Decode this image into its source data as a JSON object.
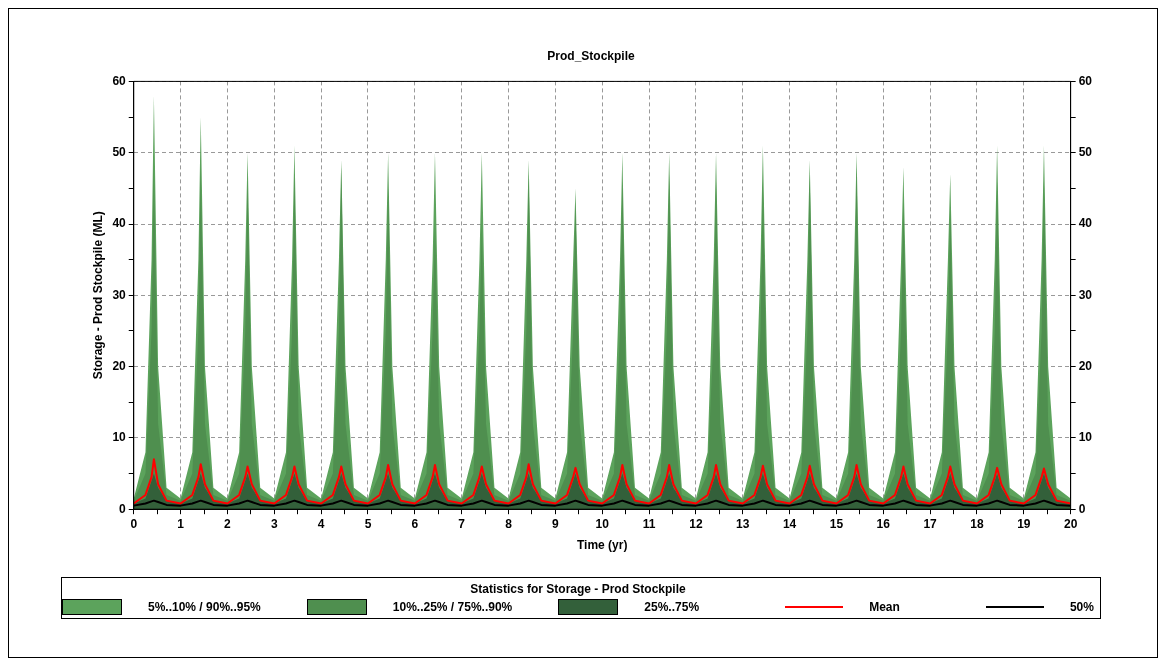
{
  "chart_data": {
    "type": "line",
    "title": "Prod_Stockpile",
    "xlabel": "Time (yr)",
    "ylabel": "Storage - Prod Stockpile (ML)",
    "legend_title": "Statistics for Storage - Prod Stockpile",
    "legend": "bottom",
    "grid": true,
    "marker": "none",
    "xlim": [
      0,
      20
    ],
    "xticks": [
      0,
      {
        "value": 0.5,
        "label": null
      },
      1,
      {
        "value": 1.5,
        "label": null
      },
      2,
      {
        "value": 2.5,
        "label": null
      },
      3,
      {
        "value": 3.5,
        "label": null
      },
      4,
      {
        "value": 4.5,
        "label": null
      },
      5,
      {
        "value": 5.5,
        "label": null
      },
      6,
      {
        "value": 6.5,
        "label": null
      },
      7,
      {
        "value": 7.5,
        "label": null
      },
      8,
      {
        "value": 8.5,
        "label": null
      },
      9,
      {
        "value": 9.5,
        "label": null
      },
      10,
      {
        "value": 10.5,
        "label": null
      },
      11,
      {
        "value": 11.5,
        "label": null
      },
      12,
      {
        "value": 12.5,
        "label": null
      },
      13,
      {
        "value": 13.5,
        "label": null
      },
      14,
      {
        "value": 14.5,
        "label": null
      },
      15,
      {
        "value": 15.5,
        "label": null
      },
      16,
      {
        "value": 16.5,
        "label": null
      },
      17,
      {
        "value": 17.5,
        "label": null
      },
      18,
      {
        "value": 18.5,
        "label": null
      },
      19,
      {
        "value": 19.5,
        "label": null
      },
      20
    ],
    "ylim": [
      0,
      60
    ],
    "yticks": [
      0,
      {
        "value": 5,
        "label": null
      },
      10,
      {
        "value": 15,
        "label": null
      },
      20,
      {
        "value": 25,
        "label": null
      },
      30,
      {
        "value": 35,
        "label": null
      },
      40,
      {
        "value": 45,
        "label": null
      },
      50,
      {
        "value": 55,
        "label": null
      },
      60
    ],
    "y2lim": [
      0,
      60
    ],
    "y2ticks": [
      0,
      {
        "value": 5,
        "label": null
      },
      10,
      {
        "value": 15,
        "label": null
      },
      20,
      {
        "value": 25,
        "label": null
      },
      30,
      {
        "value": 35,
        "label": null
      },
      40,
      {
        "value": 45,
        "label": null
      },
      50,
      {
        "value": 55,
        "label": null
      },
      60
    ],
    "x": [
      0,
      0.25,
      0.38,
      0.43,
      0.52,
      0.7,
      1,
      1.25,
      1.38,
      1.43,
      1.52,
      1.7,
      2,
      2.25,
      2.38,
      2.43,
      2.52,
      2.7,
      3,
      3.25,
      3.38,
      3.43,
      3.52,
      3.7,
      4,
      4.25,
      4.38,
      4.43,
      4.52,
      4.7,
      5,
      5.25,
      5.38,
      5.43,
      5.52,
      5.7,
      6,
      6.25,
      6.38,
      6.43,
      6.52,
      6.7,
      7,
      7.25,
      7.38,
      7.43,
      7.52,
      7.7,
      8,
      8.25,
      8.38,
      8.43,
      8.52,
      8.7,
      9,
      9.25,
      9.38,
      9.43,
      9.52,
      9.7,
      10,
      10.25,
      10.38,
      10.43,
      10.52,
      10.7,
      11,
      11.25,
      11.38,
      11.43,
      11.52,
      11.7,
      12,
      12.25,
      12.38,
      12.43,
      12.52,
      12.7,
      13,
      13.25,
      13.38,
      13.43,
      13.52,
      13.7,
      14,
      14.25,
      14.38,
      14.43,
      14.52,
      14.7,
      15,
      15.25,
      15.38,
      15.43,
      15.52,
      15.7,
      16,
      16.25,
      16.38,
      16.43,
      16.52,
      16.7,
      17,
      17.25,
      17.38,
      17.43,
      17.52,
      17.7,
      18,
      18.25,
      18.38,
      18.43,
      18.52,
      18.7,
      19,
      19.25,
      19.38,
      19.43,
      19.52,
      19.7,
      20
    ],
    "series": [
      {
        "name": "5%..10% / 90%..95%",
        "type": "area",
        "color": "#5ca35c",
        "values": [
          1.5,
          8,
          35,
          58,
          20,
          3,
          1.5,
          8,
          35,
          55,
          20,
          3,
          1.5,
          8,
          35,
          50,
          20,
          3,
          1.5,
          8,
          35,
          51,
          20,
          3,
          1.5,
          8,
          35,
          49,
          20,
          3,
          1.5,
          8,
          35,
          50,
          20,
          3,
          1.5,
          8,
          35,
          50,
          20,
          3,
          1.5,
          8,
          35,
          50,
          20,
          3,
          1.5,
          8,
          35,
          49,
          20,
          3,
          1.5,
          8,
          35,
          45,
          20,
          3,
          1.5,
          8,
          35,
          50,
          20,
          3,
          1.5,
          8,
          35,
          50,
          20,
          3,
          1.5,
          8,
          35,
          50,
          20,
          3,
          1.5,
          8,
          35,
          51,
          20,
          3,
          1.5,
          8,
          35,
          49,
          20,
          3,
          1.5,
          8,
          35,
          50,
          20,
          3,
          1.5,
          8,
          35,
          48,
          20,
          3,
          1.5,
          8,
          35,
          47,
          20,
          3,
          1.5,
          8,
          35,
          51,
          20,
          3,
          1.5,
          8,
          35,
          51,
          20,
          3,
          1.5
        ]
      },
      {
        "name": "10%..25% / 75%..90%",
        "type": "area",
        "color": "#4f8f4f",
        "values": [
          1.2,
          5,
          25,
          48,
          12,
          2,
          1.2,
          5,
          25,
          48,
          12,
          2,
          1.2,
          5,
          25,
          46,
          12,
          2,
          1.2,
          5,
          25,
          47,
          12,
          2,
          1.2,
          5,
          25,
          48,
          12,
          2,
          1.2,
          5,
          25,
          45,
          12,
          2,
          1.2,
          5,
          25,
          40,
          12,
          2,
          1.2,
          5,
          25,
          40,
          12,
          2,
          1.2,
          5,
          25,
          47,
          12,
          2,
          1.2,
          5,
          25,
          43,
          12,
          2,
          1.2,
          5,
          25,
          46,
          12,
          2,
          1.2,
          5,
          25,
          47,
          12,
          2,
          1.2,
          5,
          25,
          46,
          12,
          2,
          1.2,
          5,
          25,
          46,
          12,
          2,
          1.2,
          5,
          25,
          47,
          12,
          2,
          1.2,
          5,
          25,
          48,
          12,
          2,
          1.2,
          5,
          25,
          43,
          12,
          2,
          1.2,
          5,
          25,
          42,
          12,
          2,
          1.2,
          5,
          25,
          46,
          12,
          2,
          1.2,
          5,
          25,
          46,
          12,
          2,
          1.2
        ]
      },
      {
        "name": "25%..75%",
        "type": "area",
        "color": "#33603a",
        "values": [
          0.8,
          1.5,
          4,
          5,
          3,
          1.2,
          0.8,
          1.5,
          4,
          5,
          3,
          1.2,
          0.8,
          1.5,
          4,
          5,
          3,
          1.2,
          0.8,
          1.5,
          4,
          5,
          3,
          1.2,
          0.8,
          1.5,
          4,
          5,
          3,
          1.2,
          0.8,
          1.5,
          4,
          5,
          3,
          1.2,
          0.8,
          1.5,
          4,
          5,
          3,
          1.2,
          0.8,
          1.5,
          4,
          5,
          3,
          1.2,
          0.8,
          1.5,
          4,
          5,
          3,
          1.2,
          0.8,
          1.5,
          4,
          5,
          3,
          1.2,
          0.8,
          1.5,
          4,
          5,
          3,
          1.2,
          0.8,
          1.5,
          4,
          5,
          3,
          1.2,
          0.8,
          1.5,
          4,
          5,
          3,
          1.2,
          0.8,
          1.5,
          4,
          5,
          3,
          1.2,
          0.8,
          1.5,
          4,
          5,
          3,
          1.2,
          0.8,
          1.5,
          4,
          5,
          3,
          1.2,
          0.8,
          1.5,
          4,
          5,
          3,
          1.2,
          0.8,
          1.5,
          4,
          5,
          3,
          1.2,
          0.8,
          1.5,
          4,
          5,
          3,
          1.2,
          0.8,
          1.5,
          4,
          5,
          3,
          1.2,
          0.8
        ]
      },
      {
        "name": "Mean",
        "type": "line",
        "color": "#ff0000",
        "values": [
          0.8,
          2,
          4.5,
          7,
          3.5,
          1.2,
          0.8,
          2,
          4.5,
          6.3,
          3.5,
          1.2,
          0.8,
          2,
          4.5,
          6,
          3.5,
          1.2,
          0.8,
          2,
          4.5,
          6,
          3.5,
          1.2,
          0.8,
          2,
          4.5,
          6,
          3.5,
          1.2,
          0.8,
          2,
          4.5,
          6.2,
          3.5,
          1.2,
          0.8,
          2,
          4.5,
          6.2,
          3.5,
          1.2,
          0.8,
          2,
          4.5,
          6,
          3.5,
          1.2,
          0.8,
          2,
          4.5,
          6.3,
          3.5,
          1.2,
          0.8,
          2,
          4.5,
          5.8,
          3.5,
          1.2,
          0.8,
          2,
          4.5,
          6.2,
          3.5,
          1.2,
          0.8,
          2,
          4.5,
          6.2,
          3.5,
          1.2,
          0.8,
          2,
          4.5,
          6.2,
          3.5,
          1.2,
          0.8,
          2,
          4.5,
          6.1,
          3.5,
          1.2,
          0.8,
          2,
          4.5,
          6.1,
          3.5,
          1.2,
          0.8,
          2,
          4.5,
          6.2,
          3.5,
          1.2,
          0.8,
          2,
          4.5,
          6,
          3.5,
          1.2,
          0.8,
          2,
          4.5,
          6,
          3.5,
          1.2,
          0.8,
          2,
          4.5,
          5.8,
          3.5,
          1.2,
          0.8,
          2,
          4.5,
          5.7,
          3.5,
          1.2,
          0.8
        ]
      },
      {
        "name": "50%",
        "type": "line",
        "color": "#000000",
        "values": [
          0.5,
          0.8,
          1.1,
          1.2,
          1,
          0.6,
          0.5,
          0.8,
          1.1,
          1.2,
          1,
          0.6,
          0.5,
          0.8,
          1.1,
          1.2,
          1,
          0.6,
          0.5,
          0.8,
          1.1,
          1.2,
          1,
          0.6,
          0.5,
          0.8,
          1.1,
          1.2,
          1,
          0.6,
          0.5,
          0.8,
          1.1,
          1.2,
          1,
          0.6,
          0.5,
          0.8,
          1.1,
          1.2,
          1,
          0.6,
          0.5,
          0.8,
          1.1,
          1.2,
          1,
          0.6,
          0.5,
          0.8,
          1.1,
          1.2,
          1,
          0.6,
          0.5,
          0.8,
          1.1,
          1.2,
          1,
          0.6,
          0.5,
          0.8,
          1.1,
          1.2,
          1,
          0.6,
          0.5,
          0.8,
          1.1,
          1.2,
          1,
          0.6,
          0.5,
          0.8,
          1.1,
          1.2,
          1,
          0.6,
          0.5,
          0.8,
          1.1,
          1.2,
          1,
          0.6,
          0.5,
          0.8,
          1.1,
          1.2,
          1,
          0.6,
          0.5,
          0.8,
          1.1,
          1.2,
          1,
          0.6,
          0.5,
          0.8,
          1.1,
          1.2,
          1,
          0.6,
          0.5,
          0.8,
          1.1,
          1.2,
          1,
          0.6,
          0.5,
          0.8,
          1.1,
          1.2,
          1,
          0.6,
          0.5,
          0.8,
          1.1,
          1.2,
          1,
          0.6,
          0.5
        ]
      }
    ]
  }
}
